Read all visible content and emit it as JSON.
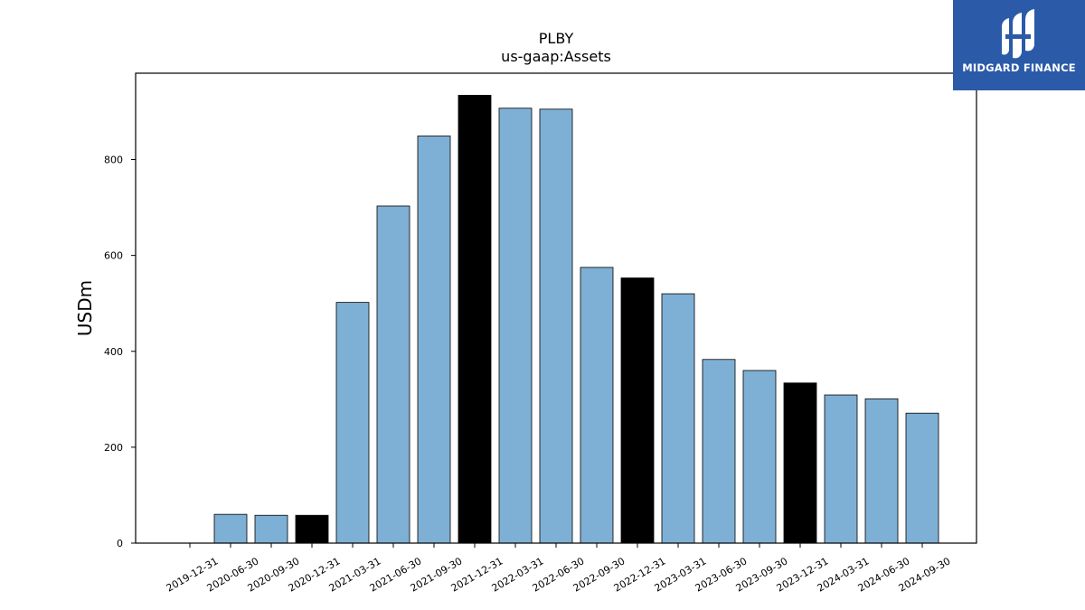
{
  "chart_data": {
    "type": "bar",
    "title": "PLBY",
    "subtitle": "us-gaap:Assets",
    "ylabel": "USDm",
    "xlabel": "",
    "ylim": [
      0,
      980
    ],
    "yticks": [
      0,
      200,
      400,
      600,
      800
    ],
    "categories": [
      "2019-12-31",
      "2020-06-30",
      "2020-09-30",
      "2020-12-31",
      "2021-03-31",
      "2021-06-30",
      "2021-09-30",
      "2021-12-31",
      "2022-03-31",
      "2022-06-30",
      "2022-09-30",
      "2022-12-31",
      "2023-03-31",
      "2023-06-30",
      "2023-09-30",
      "2023-12-31",
      "2024-03-31",
      "2024-06-30",
      "2024-09-30"
    ],
    "values": [
      0,
      60,
      58,
      58,
      502,
      703,
      849,
      934,
      907,
      905,
      575,
      553,
      520,
      383,
      360,
      334,
      309,
      301,
      271
    ],
    "bar_colors": [
      "#7eb0d5",
      "#7eb0d5",
      "#7eb0d5",
      "#000000",
      "#7eb0d5",
      "#7eb0d5",
      "#7eb0d5",
      "#000000",
      "#7eb0d5",
      "#7eb0d5",
      "#7eb0d5",
      "#000000",
      "#7eb0d5",
      "#7eb0d5",
      "#7eb0d5",
      "#000000",
      "#7eb0d5",
      "#7eb0d5",
      "#7eb0d5"
    ],
    "grid": false,
    "legend": "none"
  },
  "logo": {
    "text": "MIDGARD FINANCE",
    "background": "#2b5aa8"
  }
}
